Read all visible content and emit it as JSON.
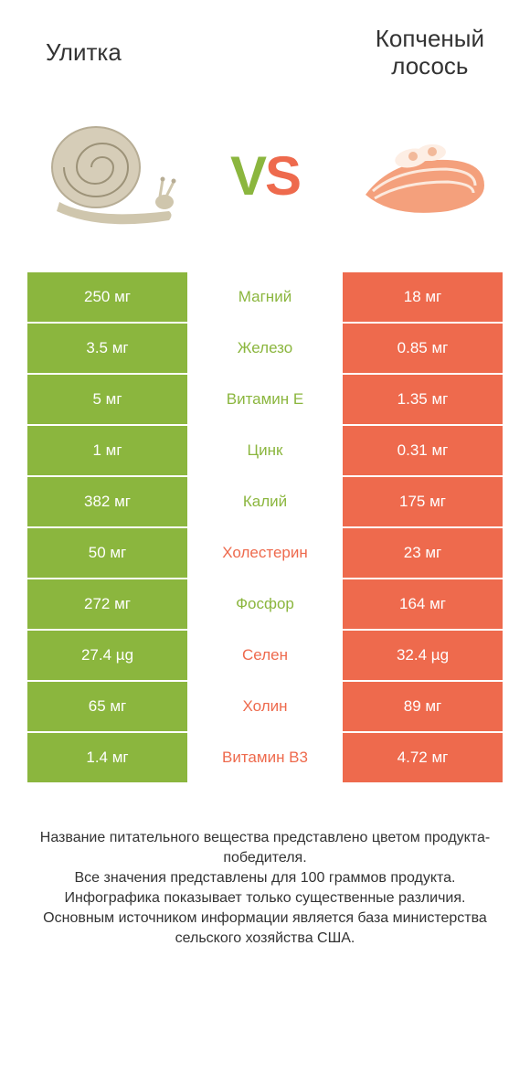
{
  "titles": {
    "left": "Улитка",
    "right_line1": "Копченый",
    "right_line2": "лосось"
  },
  "vs": {
    "v": "V",
    "s": "S"
  },
  "colors": {
    "green": "#8bb63e",
    "salmon": "#ee6a4d",
    "background": "#ffffff"
  },
  "rows": [
    {
      "left": "250 мг",
      "label": "Магний",
      "right": "18 мг",
      "winner": "left"
    },
    {
      "left": "3.5 мг",
      "label": "Железо",
      "right": "0.85 мг",
      "winner": "left"
    },
    {
      "left": "5 мг",
      "label": "Витамин E",
      "right": "1.35 мг",
      "winner": "left"
    },
    {
      "left": "1 мг",
      "label": "Цинк",
      "right": "0.31 мг",
      "winner": "left"
    },
    {
      "left": "382 мг",
      "label": "Калий",
      "right": "175 мг",
      "winner": "left"
    },
    {
      "left": "50 мг",
      "label": "Холестерин",
      "right": "23 мг",
      "winner": "right"
    },
    {
      "left": "272 мг",
      "label": "Фосфор",
      "right": "164 мг",
      "winner": "left"
    },
    {
      "left": "27.4 µg",
      "label": "Селен",
      "right": "32.4 µg",
      "winner": "right"
    },
    {
      "left": "65 мг",
      "label": "Холин",
      "right": "89 мг",
      "winner": "right"
    },
    {
      "left": "1.4 мг",
      "label": "Витамин B3",
      "right": "4.72 мг",
      "winner": "right"
    }
  ],
  "footer": {
    "line1": "Название питательного вещества представлено цветом продукта-победителя.",
    "line2": "Все значения представлены для 100 граммов продукта.",
    "line3": "Инфографика показывает только существенные различия.",
    "line4": "Основным источником информации является база министерства сельского хозяйства США."
  }
}
